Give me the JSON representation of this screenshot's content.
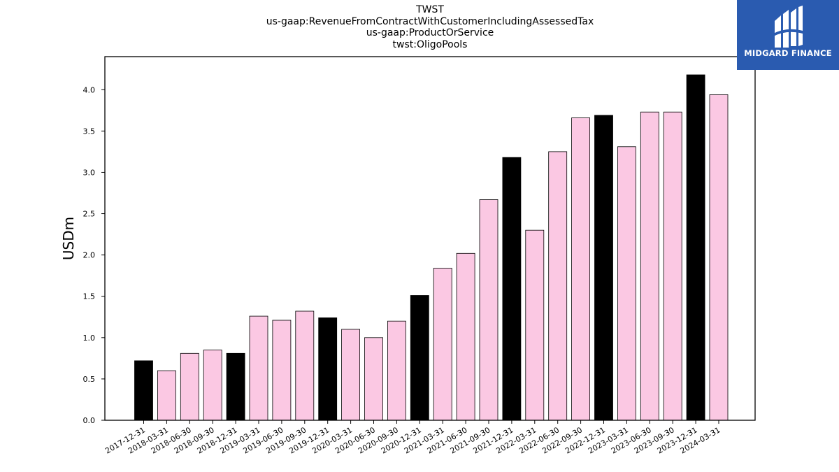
{
  "chart_data": {
    "type": "bar",
    "title_lines": [
      "TWST",
      "us-gaap:RevenueFromContractWithCustomerIncludingAssessedTax",
      "us-gaap:ProductOrService",
      "twst:OligoPools"
    ],
    "xlabel": "",
    "ylabel": "USDm",
    "ylim": [
      0,
      4.4
    ],
    "yticks": [
      0.0,
      0.5,
      1.0,
      1.5,
      2.0,
      2.5,
      3.0,
      3.5,
      4.0
    ],
    "categories": [
      "2017-12-31",
      "2018-03-31",
      "2018-06-30",
      "2018-09-30",
      "2018-12-31",
      "2019-03-31",
      "2019-06-30",
      "2019-09-30",
      "2019-12-31",
      "2020-03-31",
      "2020-06-30",
      "2020-09-30",
      "2020-12-31",
      "2021-03-31",
      "2021-06-30",
      "2021-09-30",
      "2021-12-31",
      "2022-03-31",
      "2022-06-30",
      "2022-09-30",
      "2022-12-31",
      "2023-03-31",
      "2023-06-30",
      "2023-09-30",
      "2023-12-31",
      "2024-03-31"
    ],
    "values": [
      0.72,
      0.6,
      0.81,
      0.85,
      0.81,
      1.26,
      1.21,
      1.32,
      1.24,
      1.1,
      1.0,
      1.2,
      1.51,
      1.84,
      2.02,
      2.67,
      3.18,
      2.3,
      3.25,
      3.66,
      3.69,
      3.31,
      3.73,
      3.73,
      4.18,
      3.94
    ],
    "highlight_indices": [
      0,
      4,
      8,
      12,
      16,
      20,
      24
    ],
    "colors": {
      "bar": "#fbc8e3",
      "highlight": "#000000",
      "edge": "#000000"
    },
    "grid": false
  },
  "logo": {
    "text": "MIDGARD FINANCE",
    "background": "#2a5bb0"
  }
}
